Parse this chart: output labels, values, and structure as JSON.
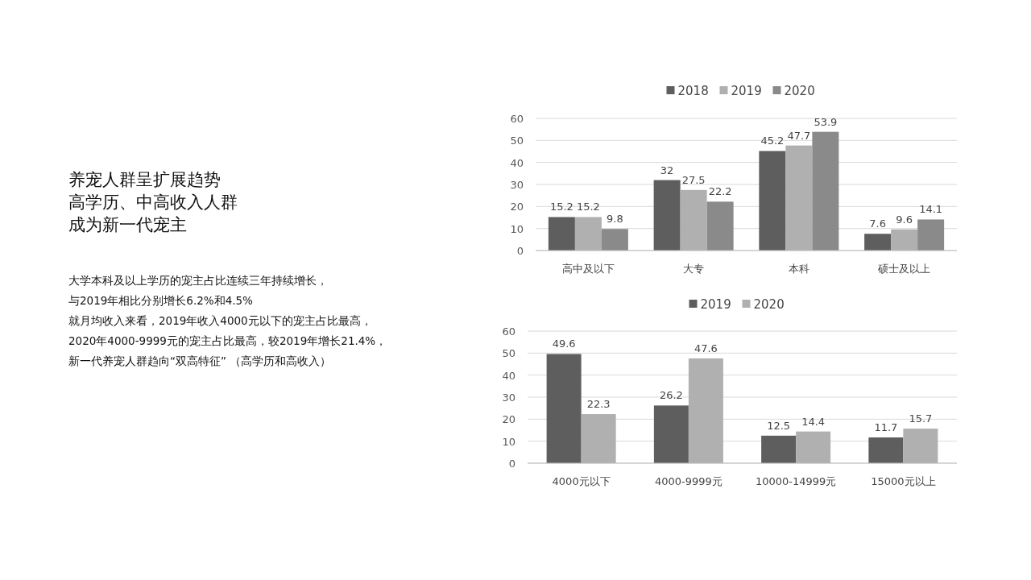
{
  "chart_data": [
    {
      "type": "other",
      "title": "养宠人群呈扩展趋势",
      "subtitle": "高学历、中高收入人群成为新一代宠主",
      "annotations": [
        "大学本科及以上学历的宠主占比连续三年持续增长，",
        "与2019年相比分别增长6.2%和4.5%",
        "就月均收入来看，2019年收入4000元以下的宠主占比最高，",
        "2020年4000-9999元的宠主占比最高，较2019年增长21.4%，",
        "新一代养宠人群趋向“双高特征” （高学历和高收入）"
      ]
    },
    {
      "type": "bar",
      "categories": [
        "高中及以下",
        "大专",
        "本科",
        "硕士及以上"
      ],
      "series": [
        {
          "name": "2018",
          "color": "#5e5e5e",
          "values": [
            15.2,
            32,
            45.2,
            7.6
          ]
        },
        {
          "name": "2019",
          "color": "#b0b0b0",
          "values": [
            15.2,
            27.5,
            47.7,
            9.6
          ]
        },
        {
          "name": "2020",
          "color": "#8a8a8a",
          "values": [
            9.8,
            22.2,
            53.9,
            14.1
          ]
        }
      ],
      "ylim": [
        0,
        60
      ],
      "yticks": [
        0,
        10,
        20,
        30,
        40,
        50,
        60
      ],
      "grid": "y",
      "legend": "top",
      "data_labels": true
    },
    {
      "type": "bar",
      "categories": [
        "4000元以下",
        "4000-9999元",
        "10000-14999元",
        "15000元以上"
      ],
      "series": [
        {
          "name": "2019",
          "color": "#5e5e5e",
          "values": [
            49.6,
            26.2,
            12.5,
            11.7
          ]
        },
        {
          "name": "2020",
          "color": "#b0b0b0",
          "values": [
            22.3,
            47.6,
            14.4,
            15.7
          ]
        }
      ],
      "ylim": [
        0,
        60
      ],
      "yticks": [
        0,
        10,
        20,
        30,
        40,
        50,
        60
      ],
      "grid": "y",
      "legend": "top",
      "data_labels": true
    }
  ]
}
